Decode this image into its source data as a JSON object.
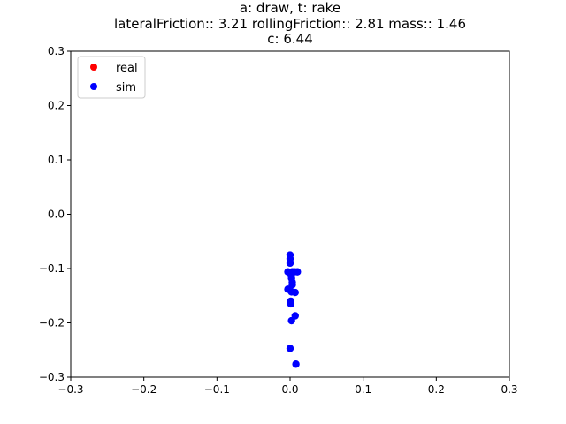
{
  "chart_data": {
    "type": "scatter",
    "title_lines": [
      "a: draw, t: rake",
      "lateralFriction:: 3.21 rollingFriction:: 2.81 mass:: 1.46",
      "c: 6.44"
    ],
    "xlabel": "",
    "ylabel": "",
    "xlim": [
      -0.3,
      0.3
    ],
    "ylim": [
      -0.3,
      0.3
    ],
    "xticks": [
      -0.3,
      -0.2,
      -0.1,
      0.0,
      0.1,
      0.2,
      0.3
    ],
    "yticks": [
      -0.3,
      -0.2,
      -0.1,
      0.0,
      0.1,
      0.2,
      0.3
    ],
    "xtick_labels": [
      "−0.3",
      "−0.2",
      "−0.1",
      "0.0",
      "0.1",
      "0.2",
      "0.3"
    ],
    "ytick_labels": [
      "−0.3",
      "−0.2",
      "−0.1",
      "0.0",
      "0.1",
      "0.2",
      "0.3"
    ],
    "grid": false,
    "legend": "top-left",
    "series": [
      {
        "name": "real",
        "color": "#ff0000",
        "points": []
      },
      {
        "name": "sim",
        "color": "#0000ff",
        "points": [
          [
            0.0,
            -0.075
          ],
          [
            0.0,
            -0.082
          ],
          [
            0.0,
            -0.09
          ],
          [
            -0.003,
            -0.106
          ],
          [
            0.003,
            -0.106
          ],
          [
            0.006,
            -0.106
          ],
          [
            0.01,
            -0.106
          ],
          [
            0.0,
            -0.11
          ],
          [
            0.002,
            -0.118
          ],
          [
            0.003,
            -0.125
          ],
          [
            0.003,
            -0.13
          ],
          [
            -0.003,
            -0.138
          ],
          [
            0.002,
            -0.143
          ],
          [
            0.007,
            -0.144
          ],
          [
            0.001,
            -0.16
          ],
          [
            0.001,
            -0.165
          ],
          [
            0.007,
            -0.187
          ],
          [
            0.002,
            -0.196
          ],
          [
            0.0,
            -0.247
          ],
          [
            0.008,
            -0.276
          ]
        ]
      }
    ]
  }
}
